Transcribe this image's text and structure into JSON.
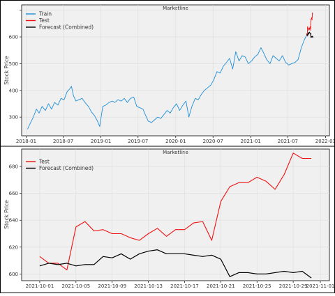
{
  "chart_data": [
    {
      "type": "line",
      "title": "Marketline",
      "xlabel": "",
      "ylabel": "Stock Price",
      "xlim": [
        "2017-12-10",
        "2022-01-20"
      ],
      "ylim": [
        230,
        720
      ],
      "x_ticks": [
        "2018-01",
        "2018-07",
        "2019-01",
        "2019-07",
        "2020-01",
        "2020-07",
        "2021-01",
        "2021-07",
        "2022-01"
      ],
      "y_ticks": [
        300,
        400,
        500,
        600,
        700
      ],
      "y_tick_labels": [
        "300",
        "400",
        "500",
        "600",
        ""
      ],
      "legend": {
        "position": "top-left",
        "entries": [
          "Train",
          "Test",
          "Forecast (Combined)"
        ]
      },
      "grid": true,
      "colors": {
        "Train": "#1f8fd6",
        "Test": "#ee1111",
        "Forecast (Combined)": "#000000"
      },
      "series": [
        {
          "name": "Train",
          "x": [
            "2018-01-08",
            "2018-01-20",
            "2018-02-05",
            "2018-02-20",
            "2018-03-05",
            "2018-03-20",
            "2018-04-05",
            "2018-04-20",
            "2018-05-05",
            "2018-05-20",
            "2018-06-05",
            "2018-06-20",
            "2018-07-05",
            "2018-07-20",
            "2018-08-01",
            "2018-08-10",
            "2018-08-20",
            "2018-09-01",
            "2018-09-15",
            "2018-10-01",
            "2018-10-15",
            "2018-11-01",
            "2018-11-15",
            "2018-12-01",
            "2018-12-15",
            "2018-12-26",
            "2019-01-10",
            "2019-01-25",
            "2019-02-10",
            "2019-02-25",
            "2019-03-10",
            "2019-03-25",
            "2019-04-10",
            "2019-04-25",
            "2019-05-10",
            "2019-05-25",
            "2019-06-10",
            "2019-06-25",
            "2019-07-10",
            "2019-07-25",
            "2019-08-05",
            "2019-08-20",
            "2019-09-05",
            "2019-09-20",
            "2019-10-05",
            "2019-10-20",
            "2019-11-05",
            "2019-11-20",
            "2019-12-05",
            "2019-12-20",
            "2020-01-05",
            "2020-01-20",
            "2020-02-05",
            "2020-02-20",
            "2020-03-05",
            "2020-03-20",
            "2020-04-05",
            "2020-04-20",
            "2020-05-05",
            "2020-05-20",
            "2020-06-05",
            "2020-06-20",
            "2020-07-05",
            "2020-07-20",
            "2020-08-05",
            "2020-08-20",
            "2020-09-05",
            "2020-09-20",
            "2020-10-05",
            "2020-10-20",
            "2020-11-05",
            "2020-11-20",
            "2020-12-05",
            "2020-12-20",
            "2021-01-05",
            "2021-01-20",
            "2021-02-05",
            "2021-02-20",
            "2021-03-05",
            "2021-03-20",
            "2021-04-05",
            "2021-04-20",
            "2021-05-05",
            "2021-05-20",
            "2021-06-05",
            "2021-06-20",
            "2021-07-05",
            "2021-07-20",
            "2021-08-05",
            "2021-08-20",
            "2021-09-05",
            "2021-09-20",
            "2021-09-30"
          ],
          "values": [
            255,
            275,
            300,
            330,
            315,
            340,
            325,
            350,
            330,
            355,
            345,
            370,
            365,
            395,
            405,
            415,
            380,
            360,
            365,
            370,
            355,
            340,
            320,
            305,
            285,
            265,
            340,
            345,
            355,
            360,
            355,
            365,
            360,
            370,
            355,
            370,
            375,
            340,
            335,
            330,
            310,
            285,
            280,
            290,
            300,
            295,
            310,
            325,
            315,
            335,
            350,
            325,
            345,
            360,
            300,
            340,
            370,
            365,
            385,
            400,
            410,
            420,
            440,
            470,
            465,
            490,
            505,
            520,
            480,
            545,
            510,
            530,
            525,
            500,
            510,
            525,
            535,
            560,
            540,
            515,
            500,
            530,
            520,
            510,
            530,
            505,
            495,
            500,
            505,
            515,
            560,
            590,
            605
          ]
        },
        {
          "name": "Test",
          "x": [
            "2021-10-01",
            "2021-10-02",
            "2021-10-03",
            "2021-10-04",
            "2021-10-05",
            "2021-10-06",
            "2021-10-07",
            "2021-10-08",
            "2021-10-09",
            "2021-10-10",
            "2021-10-11",
            "2021-10-12",
            "2021-10-13",
            "2021-10-14",
            "2021-10-15",
            "2021-10-16",
            "2021-10-17",
            "2021-10-18",
            "2021-10-19",
            "2021-10-20",
            "2021-10-21",
            "2021-10-22",
            "2021-10-23",
            "2021-10-24",
            "2021-10-25",
            "2021-10-26",
            "2021-10-27",
            "2021-10-28",
            "2021-10-29",
            "2021-10-30",
            "2021-10-31"
          ],
          "values": [
            613,
            608,
            608,
            603,
            635,
            639,
            632,
            633,
            630,
            630,
            627,
            625,
            630,
            634,
            628,
            633,
            633,
            638,
            639,
            625,
            654,
            665,
            668,
            668,
            672,
            669,
            663,
            674,
            690,
            686,
            686
          ]
        },
        {
          "name": "Forecast (Combined)",
          "x": [
            "2021-10-01",
            "2021-10-02",
            "2021-10-03",
            "2021-10-04",
            "2021-10-05",
            "2021-10-06",
            "2021-10-07",
            "2021-10-08",
            "2021-10-09",
            "2021-10-10",
            "2021-10-11",
            "2021-10-12",
            "2021-10-13",
            "2021-10-14",
            "2021-10-15",
            "2021-10-16",
            "2021-10-17",
            "2021-10-18",
            "2021-10-19",
            "2021-10-20",
            "2021-10-21",
            "2021-10-22",
            "2021-10-23",
            "2021-10-24",
            "2021-10-25",
            "2021-10-26",
            "2021-10-27",
            "2021-10-28",
            "2021-10-29",
            "2021-10-30",
            "2021-10-31"
          ],
          "values": [
            606,
            608,
            607,
            608,
            606,
            607,
            607,
            613,
            612,
            615,
            611,
            615,
            617,
            618,
            615,
            615,
            615,
            614,
            613,
            614,
            611,
            598,
            601,
            601,
            600,
            600,
            601,
            602,
            601,
            602,
            597
          ]
        }
      ]
    },
    {
      "type": "line",
      "title": "Marketline",
      "xlabel": "",
      "ylabel": "Stock Price",
      "xlim": [
        "2021-09-29",
        "2021-11-02"
      ],
      "ylim": [
        595,
        693
      ],
      "x_ticks": [
        "2021-10-01",
        "2021-10-05",
        "2021-10-09",
        "2021-10-13",
        "2021-10-17",
        "2021-10-21",
        "2021-10-25",
        "2021-10-29",
        "2021-11-01"
      ],
      "y_ticks": [
        600,
        620,
        640,
        660,
        680
      ],
      "legend": {
        "position": "top-left",
        "entries": [
          "Test",
          "Forecast (Combined)"
        ]
      },
      "grid": true,
      "colors": {
        "Test": "#ee1111",
        "Forecast (Combined)": "#000000"
      },
      "series": [
        {
          "name": "Test",
          "x": [
            "2021-10-01",
            "2021-10-02",
            "2021-10-03",
            "2021-10-04",
            "2021-10-05",
            "2021-10-06",
            "2021-10-07",
            "2021-10-08",
            "2021-10-09",
            "2021-10-10",
            "2021-10-11",
            "2021-10-12",
            "2021-10-13",
            "2021-10-14",
            "2021-10-15",
            "2021-10-16",
            "2021-10-17",
            "2021-10-18",
            "2021-10-19",
            "2021-10-20",
            "2021-10-21",
            "2021-10-22",
            "2021-10-23",
            "2021-10-24",
            "2021-10-25",
            "2021-10-26",
            "2021-10-27",
            "2021-10-28",
            "2021-10-29",
            "2021-10-30",
            "2021-10-31"
          ],
          "values": [
            613,
            608,
            608,
            603,
            635,
            639,
            632,
            633,
            630,
            630,
            627,
            625,
            630,
            634,
            628,
            633,
            633,
            638,
            639,
            625,
            654,
            665,
            668,
            668,
            672,
            669,
            663,
            674,
            690,
            686,
            686
          ]
        },
        {
          "name": "Forecast (Combined)",
          "x": [
            "2021-10-01",
            "2021-10-02",
            "2021-10-03",
            "2021-10-04",
            "2021-10-05",
            "2021-10-06",
            "2021-10-07",
            "2021-10-08",
            "2021-10-09",
            "2021-10-10",
            "2021-10-11",
            "2021-10-12",
            "2021-10-13",
            "2021-10-14",
            "2021-10-15",
            "2021-10-16",
            "2021-10-17",
            "2021-10-18",
            "2021-10-19",
            "2021-10-20",
            "2021-10-21",
            "2021-10-22",
            "2021-10-23",
            "2021-10-24",
            "2021-10-25",
            "2021-10-26",
            "2021-10-27",
            "2021-10-28",
            "2021-10-29",
            "2021-10-30",
            "2021-10-31"
          ],
          "values": [
            606,
            608,
            607,
            608,
            606,
            607,
            607,
            613,
            612,
            615,
            611,
            615,
            617,
            618,
            615,
            615,
            615,
            614,
            613,
            614,
            611,
            598,
            601,
            601,
            600,
            600,
            601,
            602,
            601,
            602,
            597
          ]
        }
      ]
    }
  ]
}
